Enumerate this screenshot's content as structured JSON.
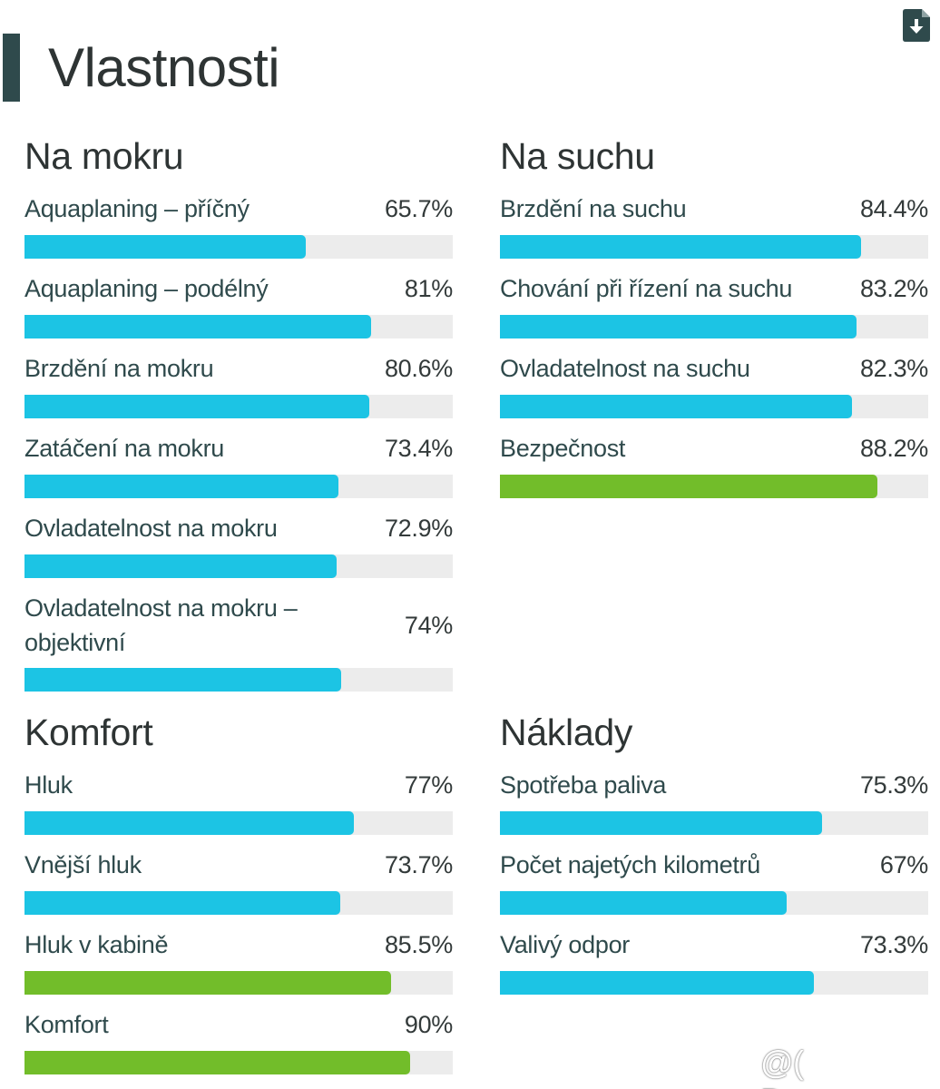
{
  "page": {
    "title": "Vlastnosti",
    "watermark": "@( Bazos.cz"
  },
  "colors": {
    "accent": "#2f4a4c",
    "bar_blue": "#1cc4e4",
    "bar_green": "#72bd2a",
    "track": "#ececec"
  },
  "icons": {
    "download": "file-download-icon"
  },
  "sections": {
    "wet": {
      "title": "Na mokru",
      "metrics": [
        {
          "label": "Aquaplaning – příčný",
          "value": "65.7%",
          "percent": 65.7,
          "color": "blue"
        },
        {
          "label": "Aquaplaning – podélný",
          "value": "81%",
          "percent": 81,
          "color": "blue"
        },
        {
          "label": "Brzdění na mokru",
          "value": "80.6%",
          "percent": 80.6,
          "color": "blue"
        },
        {
          "label": "Zatáčení na mokru",
          "value": "73.4%",
          "percent": 73.4,
          "color": "blue"
        },
        {
          "label": "Ovladatelnost na mokru",
          "value": "72.9%",
          "percent": 72.9,
          "color": "blue"
        },
        {
          "label": "Ovladatelnost na mokru – objektivní",
          "value": "74%",
          "percent": 74,
          "color": "blue"
        }
      ]
    },
    "dry": {
      "title": "Na suchu",
      "metrics": [
        {
          "label": "Brzdění na suchu",
          "value": "84.4%",
          "percent": 84.4,
          "color": "blue"
        },
        {
          "label": "Chování při řízení na suchu",
          "value": "83.2%",
          "percent": 83.2,
          "color": "blue"
        },
        {
          "label": "Ovladatelnost na suchu",
          "value": "82.3%",
          "percent": 82.3,
          "color": "blue"
        },
        {
          "label": "Bezpečnost",
          "value": "88.2%",
          "percent": 88.2,
          "color": "green"
        }
      ]
    },
    "comfort": {
      "title": "Komfort",
      "metrics": [
        {
          "label": "Hluk",
          "value": "77%",
          "percent": 77,
          "color": "blue"
        },
        {
          "label": "Vnější hluk",
          "value": "73.7%",
          "percent": 73.7,
          "color": "blue"
        },
        {
          "label": "Hluk v kabině",
          "value": "85.5%",
          "percent": 85.5,
          "color": "green"
        },
        {
          "label": "Komfort",
          "value": "90%",
          "percent": 90,
          "color": "green"
        }
      ]
    },
    "costs": {
      "title": "Náklady",
      "metrics": [
        {
          "label": "Spotřeba paliva",
          "value": "75.3%",
          "percent": 75.3,
          "color": "blue"
        },
        {
          "label": "Počet najetých kilometrů",
          "value": "67%",
          "percent": 67,
          "color": "blue"
        },
        {
          "label": "Valivý odpor",
          "value": "73.3%",
          "percent": 73.3,
          "color": "blue"
        }
      ]
    }
  }
}
